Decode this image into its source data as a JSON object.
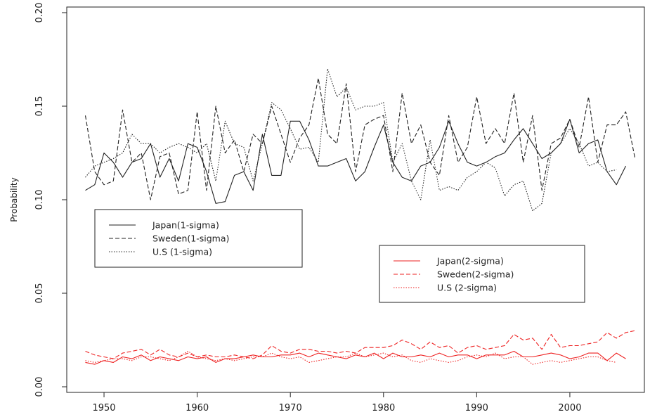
{
  "chart_data": {
    "type": "line",
    "title": "",
    "xlabel": "",
    "ylabel": "Probability",
    "xlim": [
      1946,
      2008
    ],
    "ylim": [
      -0.003,
      0.203
    ],
    "x_ticks": [
      1950,
      1960,
      1970,
      1980,
      1990,
      2000
    ],
    "y_ticks": [
      0.0,
      0.05,
      0.1,
      0.15,
      0.2
    ],
    "y_tick_labels": [
      "0.00",
      "0.05",
      "0.10",
      "0.15",
      "0.20"
    ],
    "grid": false,
    "legends": [
      {
        "placement": "center-left",
        "entries": [
          {
            "label": "Japan(1-sigma)",
            "color": "#222222",
            "style": "solid"
          },
          {
            "label": "Sweden(1-sigma)",
            "color": "#222222",
            "style": "dashed"
          },
          {
            "label": "U.S (1-sigma)",
            "color": "#222222",
            "style": "dotted"
          }
        ]
      },
      {
        "placement": "center-right",
        "entries": [
          {
            "label": "Japan(2-sigma)",
            "color": "#ee2222",
            "style": "solid"
          },
          {
            "label": "Sweden(2-sigma)",
            "color": "#ee2222",
            "style": "dashed"
          },
          {
            "label": "U.S (2-sigma)",
            "color": "#ee2222",
            "style": "dotted"
          }
        ]
      }
    ],
    "series": [
      {
        "name": "Japan(1-sigma)",
        "color": "#222222",
        "style": "solid",
        "x": [
          1948,
          1949,
          1950,
          1951,
          1952,
          1953,
          1954,
          1955,
          1956,
          1957,
          1958,
          1959,
          1960,
          1961,
          1962,
          1963,
          1964,
          1965,
          1966,
          1967,
          1968,
          1969,
          1970,
          1971,
          1972,
          1973,
          1974,
          1975,
          1976,
          1977,
          1978,
          1979,
          1980,
          1981,
          1982,
          1983,
          1984,
          1985,
          1986,
          1987,
          1988,
          1989,
          1990,
          1991,
          1992,
          1993,
          1994,
          1995,
          1996,
          1997,
          1998,
          1999,
          2000,
          2001,
          2002,
          2003,
          2004,
          2005,
          2006
        ],
        "values": [
          0.105,
          0.108,
          0.125,
          0.12,
          0.112,
          0.12,
          0.122,
          0.13,
          0.112,
          0.122,
          0.11,
          0.13,
          0.128,
          0.115,
          0.098,
          0.099,
          0.113,
          0.115,
          0.105,
          0.135,
          0.113,
          0.113,
          0.142,
          0.142,
          0.132,
          0.118,
          0.118,
          0.12,
          0.122,
          0.11,
          0.115,
          0.128,
          0.14,
          0.12,
          0.112,
          0.11,
          0.118,
          0.12,
          0.128,
          0.142,
          0.13,
          0.12,
          0.118,
          0.12,
          0.123,
          0.125,
          0.132,
          0.138,
          0.13,
          0.122,
          0.125,
          0.13,
          0.143,
          0.125,
          0.13,
          0.132,
          0.115,
          0.108,
          0.118
        ]
      },
      {
        "name": "Sweden(1-sigma)",
        "color": "#222222",
        "style": "dashed",
        "x": [
          1948,
          1949,
          1950,
          1951,
          1952,
          1953,
          1954,
          1955,
          1956,
          1957,
          1958,
          1959,
          1960,
          1961,
          1962,
          1963,
          1964,
          1965,
          1966,
          1967,
          1968,
          1969,
          1970,
          1971,
          1972,
          1973,
          1974,
          1975,
          1976,
          1977,
          1978,
          1979,
          1980,
          1981,
          1982,
          1983,
          1984,
          1985,
          1986,
          1987,
          1988,
          1989,
          1990,
          1991,
          1992,
          1993,
          1994,
          1995,
          1996,
          1997,
          1998,
          1999,
          2000,
          2001,
          2002,
          2003,
          2004,
          2005,
          2006,
          2007
        ],
        "values": [
          0.145,
          0.115,
          0.108,
          0.11,
          0.148,
          0.12,
          0.125,
          0.1,
          0.123,
          0.125,
          0.103,
          0.105,
          0.147,
          0.105,
          0.15,
          0.125,
          0.132,
          0.115,
          0.135,
          0.13,
          0.15,
          0.135,
          0.12,
          0.133,
          0.14,
          0.165,
          0.135,
          0.13,
          0.162,
          0.115,
          0.14,
          0.143,
          0.145,
          0.115,
          0.157,
          0.13,
          0.14,
          0.12,
          0.113,
          0.145,
          0.12,
          0.128,
          0.155,
          0.13,
          0.138,
          0.13,
          0.157,
          0.12,
          0.145,
          0.105,
          0.13,
          0.133,
          0.143,
          0.128,
          0.155,
          0.12,
          0.14,
          0.14,
          0.147,
          0.122
        ]
      },
      {
        "name": "U.S (1-sigma)",
        "color": "#222222",
        "style": "dotted",
        "x": [
          1948,
          1949,
          1950,
          1951,
          1952,
          1953,
          1954,
          1955,
          1956,
          1957,
          1958,
          1959,
          1960,
          1961,
          1962,
          1963,
          1964,
          1965,
          1966,
          1967,
          1968,
          1969,
          1970,
          1971,
          1972,
          1973,
          1974,
          1975,
          1976,
          1977,
          1978,
          1979,
          1980,
          1981,
          1982,
          1983,
          1984,
          1985,
          1986,
          1987,
          1988,
          1989,
          1990,
          1991,
          1992,
          1993,
          1994,
          1995,
          1996,
          1997,
          1998,
          1999,
          2000,
          2001,
          2002,
          2003,
          2004,
          2005
        ],
        "values": [
          0.112,
          0.118,
          0.12,
          0.122,
          0.125,
          0.135,
          0.13,
          0.13,
          0.125,
          0.128,
          0.13,
          0.128,
          0.125,
          0.13,
          0.11,
          0.142,
          0.13,
          0.128,
          0.11,
          0.13,
          0.152,
          0.148,
          0.138,
          0.127,
          0.128,
          0.12,
          0.17,
          0.155,
          0.16,
          0.148,
          0.15,
          0.15,
          0.152,
          0.12,
          0.13,
          0.11,
          0.1,
          0.132,
          0.105,
          0.107,
          0.105,
          0.112,
          0.115,
          0.12,
          0.117,
          0.102,
          0.108,
          0.11,
          0.094,
          0.098,
          0.125,
          0.13,
          0.138,
          0.13,
          0.118,
          0.12,
          0.115,
          0.116
        ]
      },
      {
        "name": "Japan(2-sigma)",
        "color": "#ee2222",
        "style": "solid",
        "x": [
          1948,
          1949,
          1950,
          1951,
          1952,
          1953,
          1954,
          1955,
          1956,
          1957,
          1958,
          1959,
          1960,
          1961,
          1962,
          1963,
          1964,
          1965,
          1966,
          1967,
          1968,
          1969,
          1970,
          1971,
          1972,
          1973,
          1974,
          1975,
          1976,
          1977,
          1978,
          1979,
          1980,
          1981,
          1982,
          1983,
          1984,
          1985,
          1986,
          1987,
          1988,
          1989,
          1990,
          1991,
          1992,
          1993,
          1994,
          1995,
          1996,
          1997,
          1998,
          1999,
          2000,
          2001,
          2002,
          2003,
          2004,
          2005,
          2006
        ],
        "values": [
          0.013,
          0.012,
          0.014,
          0.013,
          0.016,
          0.015,
          0.017,
          0.014,
          0.016,
          0.015,
          0.014,
          0.016,
          0.015,
          0.016,
          0.013,
          0.015,
          0.015,
          0.016,
          0.017,
          0.016,
          0.016,
          0.017,
          0.017,
          0.018,
          0.016,
          0.018,
          0.017,
          0.016,
          0.015,
          0.017,
          0.016,
          0.018,
          0.015,
          0.018,
          0.016,
          0.016,
          0.017,
          0.016,
          0.018,
          0.016,
          0.017,
          0.017,
          0.015,
          0.017,
          0.017,
          0.017,
          0.019,
          0.016,
          0.016,
          0.017,
          0.018,
          0.017,
          0.015,
          0.016,
          0.018,
          0.018,
          0.014,
          0.018,
          0.015
        ]
      },
      {
        "name": "Sweden(2-sigma)",
        "color": "#ee2222",
        "style": "dashed",
        "x": [
          1948,
          1949,
          1950,
          1951,
          1952,
          1953,
          1954,
          1955,
          1956,
          1957,
          1958,
          1959,
          1960,
          1961,
          1962,
          1963,
          1964,
          1965,
          1966,
          1967,
          1968,
          1969,
          1970,
          1971,
          1972,
          1973,
          1974,
          1975,
          1976,
          1977,
          1978,
          1979,
          1980,
          1981,
          1982,
          1983,
          1984,
          1985,
          1986,
          1987,
          1988,
          1989,
          1990,
          1991,
          1992,
          1993,
          1994,
          1995,
          1996,
          1997,
          1998,
          1999,
          2000,
          2001,
          2002,
          2003,
          2004,
          2005,
          2006,
          2007
        ],
        "values": [
          0.019,
          0.017,
          0.016,
          0.015,
          0.018,
          0.019,
          0.02,
          0.017,
          0.02,
          0.017,
          0.016,
          0.018,
          0.016,
          0.017,
          0.016,
          0.016,
          0.017,
          0.016,
          0.015,
          0.017,
          0.022,
          0.019,
          0.018,
          0.02,
          0.02,
          0.019,
          0.019,
          0.018,
          0.019,
          0.018,
          0.021,
          0.021,
          0.021,
          0.022,
          0.025,
          0.023,
          0.02,
          0.024,
          0.021,
          0.022,
          0.018,
          0.021,
          0.022,
          0.02,
          0.021,
          0.022,
          0.028,
          0.025,
          0.026,
          0.02,
          0.028,
          0.021,
          0.022,
          0.022,
          0.023,
          0.024,
          0.029,
          0.026,
          0.029,
          0.03
        ]
      },
      {
        "name": "U.S (2-sigma)",
        "color": "#ee2222",
        "style": "dotted",
        "x": [
          1948,
          1949,
          1950,
          1951,
          1952,
          1953,
          1954,
          1955,
          1956,
          1957,
          1958,
          1959,
          1960,
          1961,
          1962,
          1963,
          1964,
          1965,
          1966,
          1967,
          1968,
          1969,
          1970,
          1971,
          1972,
          1973,
          1974,
          1975,
          1976,
          1977,
          1978,
          1979,
          1980,
          1981,
          1982,
          1983,
          1984,
          1985,
          1986,
          1987,
          1988,
          1989,
          1990,
          1991,
          1992,
          1993,
          1994,
          1995,
          1996,
          1997,
          1998,
          1999,
          2000,
          2001,
          2002,
          2003,
          2004,
          2005
        ],
        "values": [
          0.014,
          0.013,
          0.014,
          0.015,
          0.015,
          0.014,
          0.016,
          0.016,
          0.015,
          0.014,
          0.016,
          0.019,
          0.016,
          0.015,
          0.014,
          0.015,
          0.014,
          0.015,
          0.016,
          0.016,
          0.018,
          0.016,
          0.015,
          0.016,
          0.013,
          0.014,
          0.015,
          0.016,
          0.016,
          0.018,
          0.016,
          0.017,
          0.018,
          0.016,
          0.017,
          0.014,
          0.013,
          0.015,
          0.014,
          0.013,
          0.014,
          0.016,
          0.017,
          0.016,
          0.018,
          0.015,
          0.016,
          0.016,
          0.012,
          0.013,
          0.014,
          0.013,
          0.014,
          0.015,
          0.016,
          0.016,
          0.014,
          0.013
        ]
      }
    ]
  }
}
